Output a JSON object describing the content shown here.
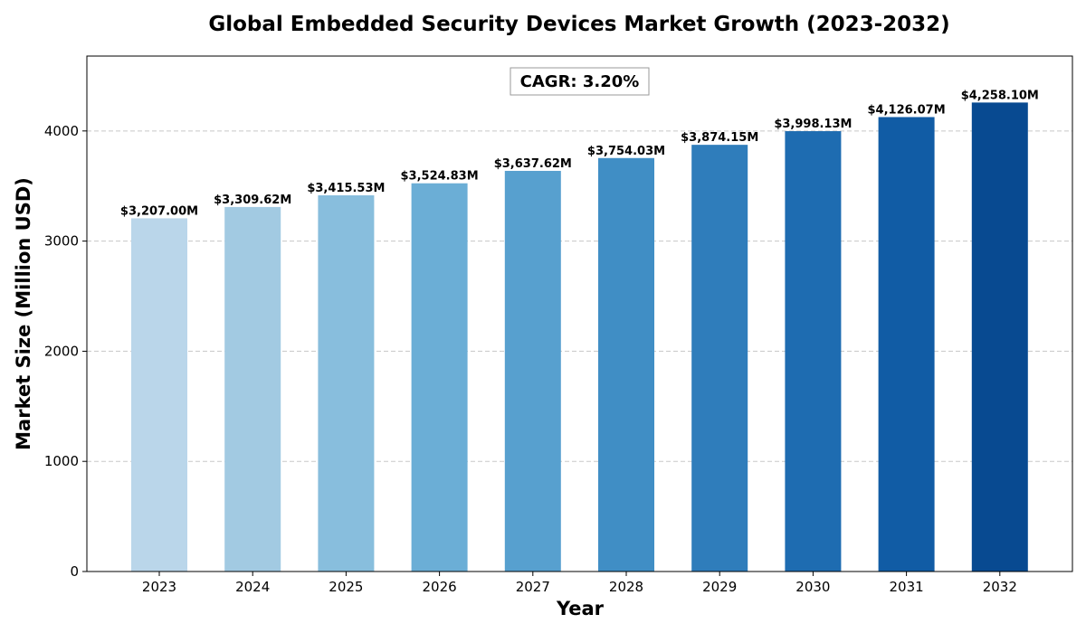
{
  "chart_data": {
    "type": "bar",
    "title": "Global Embedded Security Devices Market Growth (2023-2032)",
    "xlabel": "Year",
    "ylabel": "Market Size (Million USD)",
    "categories": [
      "2023",
      "2024",
      "2025",
      "2026",
      "2027",
      "2028",
      "2029",
      "2030",
      "2031",
      "2032"
    ],
    "values": [
      3207.0,
      3309.62,
      3415.53,
      3524.83,
      3637.62,
      3754.03,
      3874.15,
      3998.13,
      4126.07,
      4258.1
    ],
    "data_labels": [
      "$3,207.00M",
      "$3,309.62M",
      "$3,415.53M",
      "$3,524.83M",
      "$3,637.62M",
      "$3,754.03M",
      "$3,874.15M",
      "$3,998.13M",
      "$4,126.07M",
      "$4,258.10M"
    ],
    "colors": [
      "#bad6ea",
      "#a2cae2",
      "#88bedd",
      "#6baed6",
      "#57a0cf",
      "#408ec5",
      "#2f7dbb",
      "#1e6cb1",
      "#115ca5",
      "#084a91"
    ],
    "ylim": [
      0,
      4680
    ],
    "yticks": [
      0,
      1000,
      2000,
      3000,
      4000
    ],
    "grid": "y-dashed",
    "annotation": "CAGR: 3.20%"
  }
}
